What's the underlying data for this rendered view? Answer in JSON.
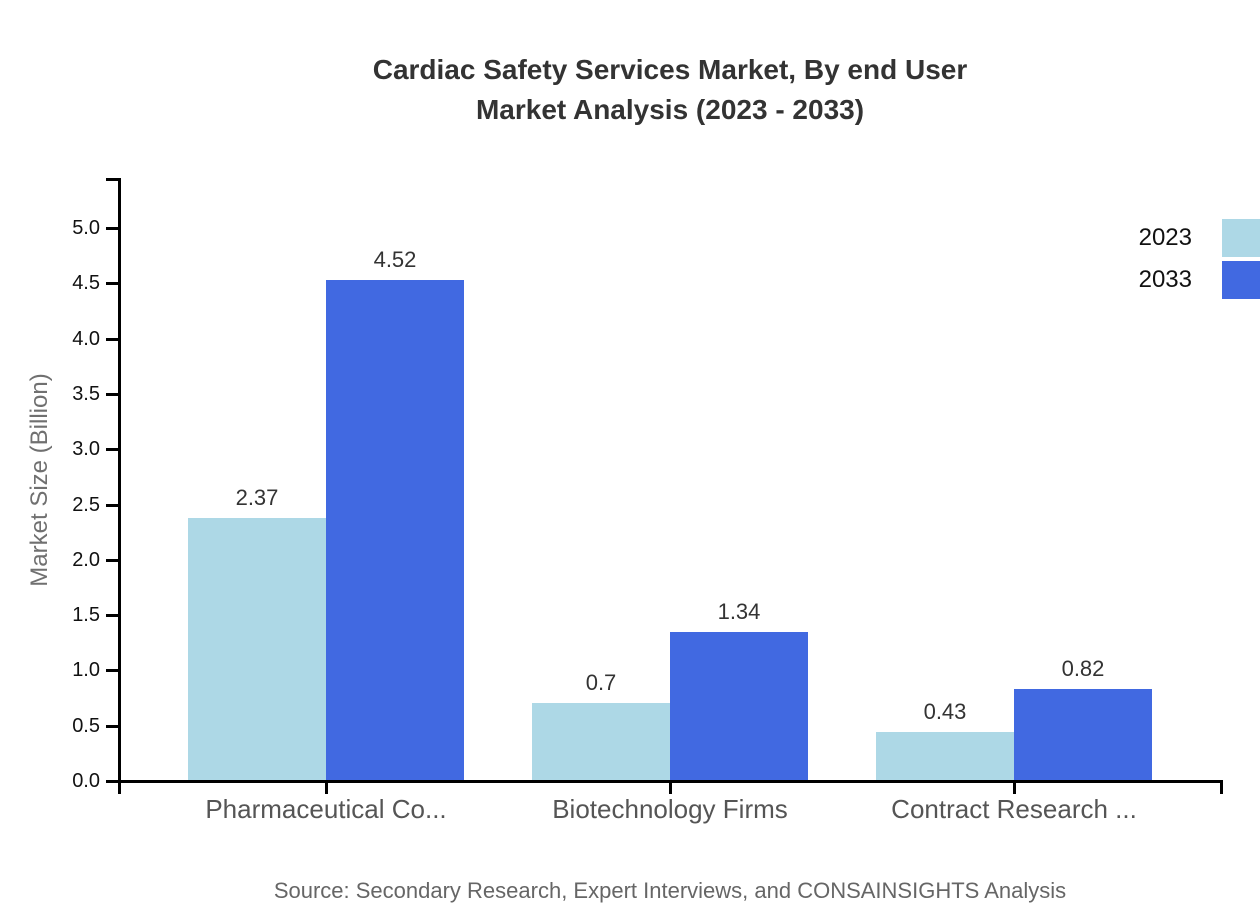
{
  "title": {
    "line1": "Cardiac Safety Services Market, By end User",
    "line2": "Market Analysis (2023 - 2033)"
  },
  "source": "Source: Secondary Research, Expert Interviews, and CONSAINSIGHTS Analysis",
  "chart_data": {
    "type": "bar",
    "title": "Cardiac Safety Services Market, By end User Market Analysis (2023 - 2033)",
    "categories": [
      "Pharmaceutical Co...",
      "Biotechnology Firms",
      "Contract Research ..."
    ],
    "series": [
      {
        "name": "2023",
        "color": "#ADD8E6",
        "values": [
          2.37,
          0.7,
          0.43
        ]
      },
      {
        "name": "2033",
        "color": "#4169E1",
        "values": [
          4.52,
          1.34,
          0.82
        ]
      }
    ],
    "xlabel": "",
    "ylabel": "Market Size (Billion)",
    "ylim": [
      0,
      5
    ],
    "ytick_step": 0.5,
    "grid": false,
    "legend_position": "top-right",
    "axis_color": "#000000",
    "tick_label_color": "#111111",
    "category_label_color": "#555555",
    "value_label_color": "#333333"
  }
}
